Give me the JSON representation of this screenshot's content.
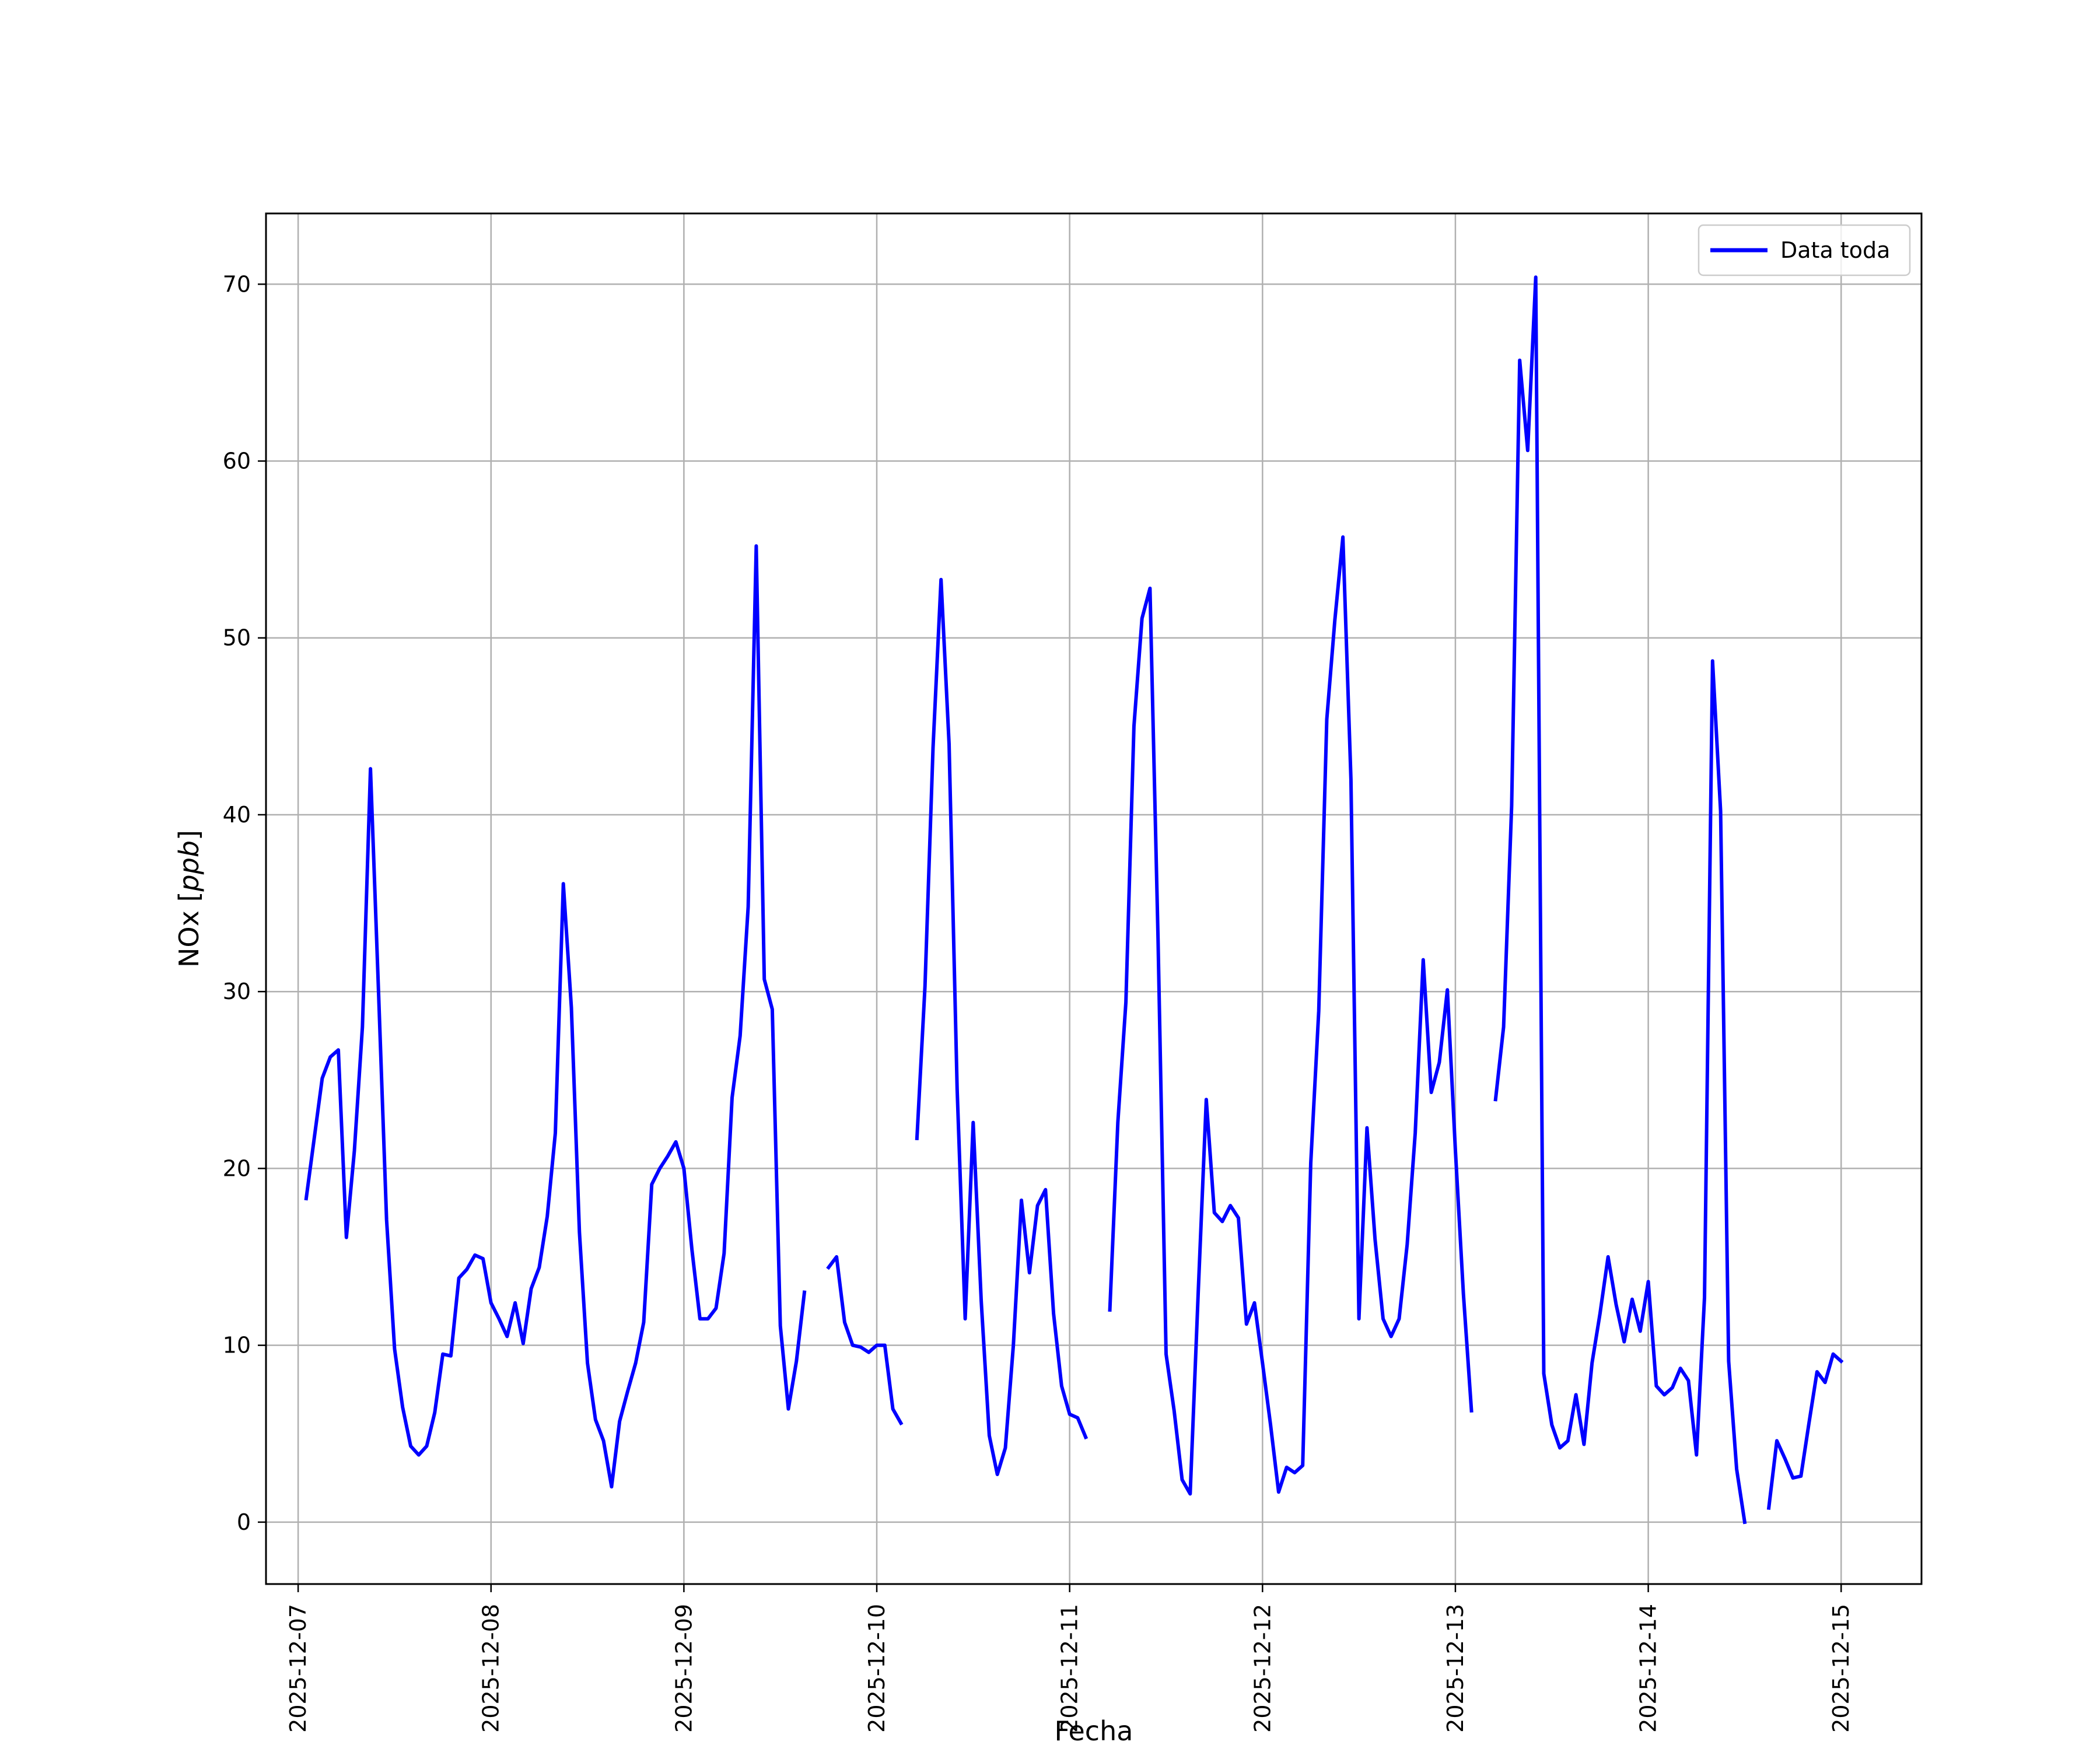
{
  "chart_data": {
    "type": "line",
    "title": "",
    "xlabel": "Fecha",
    "ylabel": "NOx [ppb]",
    "ylabel_prefix": "NOx [",
    "ylabel_unit": "ppb",
    "ylabel_suffix": "]",
    "xlim": [
      "2025-12-06T20:00",
      "2025-12-15T10:00"
    ],
    "ylim": [
      -3.5,
      74
    ],
    "grid": true,
    "legend_placement": "top-right",
    "x_ticks": [
      "2025-12-07",
      "2025-12-08",
      "2025-12-09",
      "2025-12-10",
      "2025-12-11",
      "2025-12-12",
      "2025-12-13",
      "2025-12-14",
      "2025-12-15"
    ],
    "y_ticks": [
      0,
      10,
      20,
      30,
      40,
      50,
      60,
      70
    ],
    "series": [
      {
        "name": "Data toda",
        "color": "#0000ff",
        "segments": [
          [
            [
              "2025-12-07T01:00",
              18.3
            ],
            [
              "2025-12-07T03:00",
              25.1
            ],
            [
              "2025-12-07T04:00",
              26.3
            ],
            [
              "2025-12-07T05:00",
              26.7
            ],
            [
              "2025-12-07T06:00",
              16.1
            ],
            [
              "2025-12-07T07:00",
              21.0
            ],
            [
              "2025-12-07T08:00",
              28.0
            ],
            [
              "2025-12-07T09:00",
              42.6
            ],
            [
              "2025-12-07T10:00",
              30.0
            ],
            [
              "2025-12-07T11:00",
              17.1
            ],
            [
              "2025-12-07T12:00",
              9.8
            ],
            [
              "2025-12-07T13:00",
              6.5
            ],
            [
              "2025-12-07T14:00",
              4.3
            ],
            [
              "2025-12-07T15:00",
              3.8
            ],
            [
              "2025-12-07T16:00",
              4.3
            ],
            [
              "2025-12-07T17:00",
              6.2
            ],
            [
              "2025-12-07T18:00",
              9.5
            ],
            [
              "2025-12-07T19:00",
              9.4
            ],
            [
              "2025-12-07T20:00",
              13.8
            ],
            [
              "2025-12-07T21:00",
              14.3
            ],
            [
              "2025-12-07T22:00",
              15.1
            ],
            [
              "2025-12-07T23:00",
              14.9
            ],
            [
              "2025-12-08T00:00",
              12.4
            ],
            [
              "2025-12-08T01:00",
              11.5
            ],
            [
              "2025-12-08T02:00",
              10.5
            ],
            [
              "2025-12-08T03:00",
              12.4
            ],
            [
              "2025-12-08T04:00",
              10.1
            ],
            [
              "2025-12-08T05:00",
              13.2
            ],
            [
              "2025-12-08T06:00",
              14.4
            ],
            [
              "2025-12-08T07:00",
              17.3
            ],
            [
              "2025-12-08T08:00",
              22.0
            ],
            [
              "2025-12-08T09:00",
              36.1
            ],
            [
              "2025-12-08T10:00",
              29.1
            ],
            [
              "2025-12-08T11:00",
              16.4
            ],
            [
              "2025-12-08T12:00",
              9.0
            ],
            [
              "2025-12-08T13:00",
              5.8
            ],
            [
              "2025-12-08T14:00",
              4.6
            ],
            [
              "2025-12-08T15:00",
              2.0
            ],
            [
              "2025-12-08T16:00",
              5.7
            ],
            [
              "2025-12-08T17:00",
              7.4
            ],
            [
              "2025-12-08T18:00",
              9.0
            ],
            [
              "2025-12-08T19:00",
              11.3
            ],
            [
              "2025-12-08T20:00",
              19.1
            ],
            [
              "2025-12-08T21:00",
              20.0
            ],
            [
              "2025-12-08T22:00",
              20.7
            ],
            [
              "2025-12-08T23:00",
              21.5
            ],
            [
              "2025-12-09T00:00",
              20.0
            ],
            [
              "2025-12-09T01:00",
              15.4
            ],
            [
              "2025-12-09T02:00",
              11.5
            ],
            [
              "2025-12-09T03:00",
              11.5
            ],
            [
              "2025-12-09T04:00",
              12.1
            ],
            [
              "2025-12-09T05:00",
              15.2
            ],
            [
              "2025-12-09T06:00",
              24.0
            ],
            [
              "2025-12-09T07:00",
              27.5
            ],
            [
              "2025-12-09T08:00",
              34.8
            ],
            [
              "2025-12-09T09:00",
              55.2
            ],
            [
              "2025-12-09T10:00",
              30.7
            ],
            [
              "2025-12-09T11:00",
              29.0
            ],
            [
              "2025-12-09T12:00",
              11.1
            ],
            [
              "2025-12-09T13:00",
              6.4
            ],
            [
              "2025-12-09T14:00",
              9.1
            ],
            [
              "2025-12-09T15:00",
              13.0
            ]
          ],
          [
            [
              "2025-12-09T18:00",
              14.4
            ],
            [
              "2025-12-09T19:00",
              15.0
            ],
            [
              "2025-12-09T20:00",
              11.3
            ],
            [
              "2025-12-09T21:00",
              10.0
            ],
            [
              "2025-12-09T22:00",
              9.9
            ],
            [
              "2025-12-09T23:00",
              9.6
            ],
            [
              "2025-12-10T00:00",
              10.0
            ],
            [
              "2025-12-10T01:00",
              10.0
            ],
            [
              "2025-12-10T02:00",
              6.4
            ],
            [
              "2025-12-10T03:00",
              5.6
            ]
          ],
          [
            [
              "2025-12-10T05:00",
              21.7
            ],
            [
              "2025-12-10T06:00",
              30.3
            ],
            [
              "2025-12-10T07:00",
              43.8
            ],
            [
              "2025-12-10T08:00",
              53.3
            ],
            [
              "2025-12-10T09:00",
              44.0
            ],
            [
              "2025-12-10T10:00",
              24.5
            ],
            [
              "2025-12-10T11:00",
              11.5
            ],
            [
              "2025-12-10T12:00",
              22.6
            ],
            [
              "2025-12-10T13:00",
              12.5
            ],
            [
              "2025-12-10T14:00",
              4.9
            ],
            [
              "2025-12-10T15:00",
              2.7
            ],
            [
              "2025-12-10T16:00",
              4.2
            ],
            [
              "2025-12-10T17:00",
              10.0
            ],
            [
              "2025-12-10T18:00",
              18.2
            ],
            [
              "2025-12-10T19:00",
              14.1
            ],
            [
              "2025-12-10T20:00",
              17.9
            ],
            [
              "2025-12-10T21:00",
              18.8
            ],
            [
              "2025-12-10T22:00",
              11.8
            ],
            [
              "2025-12-10T23:00",
              7.7
            ],
            [
              "2025-12-11T00:00",
              6.1
            ],
            [
              "2025-12-11T01:00",
              5.9
            ],
            [
              "2025-12-11T02:00",
              4.8
            ]
          ],
          [
            [
              "2025-12-11T05:00",
              12.0
            ],
            [
              "2025-12-11T06:00",
              22.6
            ],
            [
              "2025-12-11T07:00",
              29.4
            ],
            [
              "2025-12-11T08:00",
              45.0
            ],
            [
              "2025-12-11T09:00",
              51.1
            ],
            [
              "2025-12-11T10:00",
              52.8
            ],
            [
              "2025-12-11T11:00",
              33.0
            ],
            [
              "2025-12-11T12:00",
              9.5
            ],
            [
              "2025-12-11T13:00",
              6.3
            ],
            [
              "2025-12-11T14:00",
              2.4
            ],
            [
              "2025-12-11T15:00",
              1.6
            ],
            [
              "2025-12-11T16:00",
              13.0
            ],
            [
              "2025-12-11T17:00",
              23.9
            ],
            [
              "2025-12-11T18:00",
              17.5
            ],
            [
              "2025-12-11T19:00",
              17.0
            ],
            [
              "2025-12-11T20:00",
              17.9
            ],
            [
              "2025-12-11T21:00",
              17.2
            ],
            [
              "2025-12-11T22:00",
              11.2
            ],
            [
              "2025-12-11T23:00",
              12.4
            ],
            [
              "2025-12-12T00:00",
              9.0
            ],
            [
              "2025-12-12T01:00",
              5.5
            ],
            [
              "2025-12-12T02:00",
              1.7
            ],
            [
              "2025-12-12T03:00",
              3.1
            ],
            [
              "2025-12-12T04:00",
              2.8
            ],
            [
              "2025-12-12T05:00",
              3.2
            ],
            [
              "2025-12-12T06:00",
              20.3
            ],
            [
              "2025-12-12T07:00",
              28.9
            ],
            [
              "2025-12-12T08:00",
              45.4
            ],
            [
              "2025-12-12T09:00",
              51.0
            ],
            [
              "2025-12-12T10:00",
              55.7
            ],
            [
              "2025-12-12T11:00",
              42.0
            ],
            [
              "2025-12-12T12:00",
              11.5
            ],
            [
              "2025-12-12T13:00",
              22.3
            ],
            [
              "2025-12-12T14:00",
              16.0
            ],
            [
              "2025-12-12T15:00",
              11.5
            ],
            [
              "2025-12-12T16:00",
              10.5
            ],
            [
              "2025-12-12T17:00",
              11.5
            ],
            [
              "2025-12-12T18:00",
              15.7
            ],
            [
              "2025-12-12T19:00",
              22.0
            ],
            [
              "2025-12-12T20:00",
              31.8
            ],
            [
              "2025-12-12T21:00",
              24.3
            ],
            [
              "2025-12-12T22:00",
              26.0
            ],
            [
              "2025-12-12T23:00",
              30.1
            ],
            [
              "2025-12-13T00:00",
              21.0
            ],
            [
              "2025-12-13T01:00",
              12.9
            ],
            [
              "2025-12-13T02:00",
              6.3
            ]
          ],
          [
            [
              "2025-12-13T05:00",
              23.9
            ],
            [
              "2025-12-13T06:00",
              28.0
            ],
            [
              "2025-12-13T07:00",
              40.5
            ],
            [
              "2025-12-13T08:00",
              65.7
            ],
            [
              "2025-12-13T09:00",
              60.6
            ],
            [
              "2025-12-13T10:00",
              70.4
            ],
            [
              "2025-12-13T11:00",
              8.4
            ],
            [
              "2025-12-13T12:00",
              5.5
            ],
            [
              "2025-12-13T13:00",
              4.2
            ],
            [
              "2025-12-13T14:00",
              4.6
            ],
            [
              "2025-12-13T15:00",
              7.2
            ],
            [
              "2025-12-13T16:00",
              4.4
            ],
            [
              "2025-12-13T17:00",
              9.0
            ],
            [
              "2025-12-13T18:00",
              11.8
            ],
            [
              "2025-12-13T19:00",
              15.0
            ],
            [
              "2025-12-13T20:00",
              12.3
            ],
            [
              "2025-12-13T21:00",
              10.2
            ],
            [
              "2025-12-13T22:00",
              12.6
            ],
            [
              "2025-12-13T23:00",
              10.8
            ],
            [
              "2025-12-14T00:00",
              13.6
            ],
            [
              "2025-12-14T01:00",
              7.7
            ],
            [
              "2025-12-14T02:00",
              7.2
            ],
            [
              "2025-12-14T03:00",
              7.6
            ],
            [
              "2025-12-14T04:00",
              8.7
            ],
            [
              "2025-12-14T05:00",
              8.0
            ],
            [
              "2025-12-14T06:00",
              3.8
            ],
            [
              "2025-12-14T07:00",
              12.7
            ],
            [
              "2025-12-14T08:00",
              48.7
            ],
            [
              "2025-12-14T09:00",
              40.2
            ],
            [
              "2025-12-14T10:00",
              9.1
            ],
            [
              "2025-12-14T11:00",
              3.0
            ],
            [
              "2025-12-14T12:00",
              0.0
            ]
          ],
          [
            [
              "2025-12-14T15:00",
              0.8
            ],
            [
              "2025-12-14T16:00",
              4.6
            ],
            [
              "2025-12-14T17:00",
              3.6
            ],
            [
              "2025-12-14T18:00",
              2.5
            ],
            [
              "2025-12-14T19:00",
              2.6
            ],
            [
              "2025-12-14T20:00",
              5.6
            ],
            [
              "2025-12-14T21:00",
              8.5
            ],
            [
              "2025-12-14T22:00",
              7.9
            ],
            [
              "2025-12-14T23:00",
              9.5
            ],
            [
              "2025-12-15T00:00",
              9.1
            ]
          ]
        ]
      }
    ]
  }
}
